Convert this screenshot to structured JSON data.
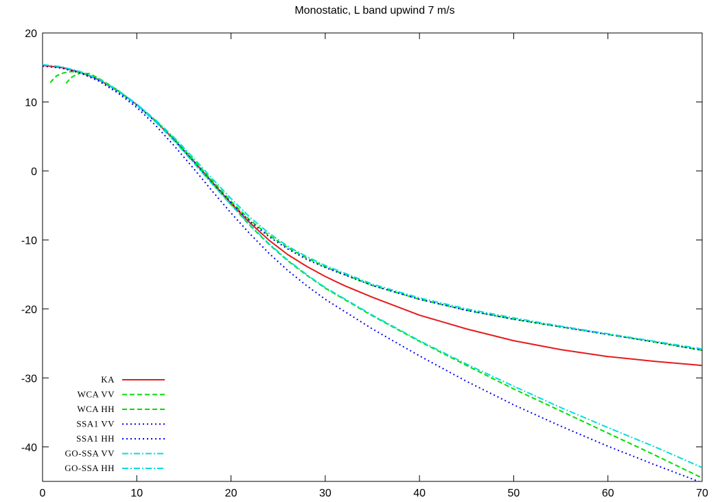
{
  "chart_data": {
    "type": "line",
    "title": "Monostatic, L band upwind 7 m/s",
    "xlabel": "",
    "ylabel": "",
    "xlim": [
      0,
      70
    ],
    "ylim": [
      -45,
      20
    ],
    "xticks": [
      0,
      10,
      20,
      30,
      40,
      50,
      60,
      70
    ],
    "yticks": [
      -40,
      -30,
      -20,
      -10,
      0,
      10,
      20
    ],
    "grid": false,
    "legend_position": "bottom-left",
    "series": [
      {
        "name": "KA",
        "color": "#e41a1c",
        "dash": "solid",
        "x": [
          0,
          2,
          4,
          6,
          8,
          10,
          12,
          14,
          16,
          18,
          20,
          22,
          24,
          26,
          28,
          30,
          32,
          35,
          40,
          45,
          50,
          55,
          60,
          65,
          70
        ],
        "y": [
          15.3,
          15.0,
          14.3,
          13.2,
          11.6,
          9.6,
          7.2,
          4.5,
          1.5,
          -1.6,
          -4.7,
          -7.5,
          -10.0,
          -12.1,
          -13.8,
          -15.3,
          -16.6,
          -18.3,
          -20.9,
          -22.9,
          -24.6,
          -25.9,
          -26.9,
          -27.6,
          -28.2
        ]
      },
      {
        "name": "WCA VV",
        "color": "#00dd00",
        "dash": "dashed",
        "x": [
          0.8,
          1.5,
          2.2,
          3,
          4,
          6,
          8,
          10,
          12,
          14,
          16,
          18,
          20,
          22,
          24,
          26,
          28,
          30,
          35,
          40,
          45,
          50,
          55,
          60,
          65,
          70
        ],
        "y": [
          12.8,
          13.8,
          14.2,
          14.4,
          14.3,
          13.3,
          11.6,
          9.6,
          7.3,
          4.6,
          1.6,
          -1.4,
          -4.4,
          -7.1,
          -9.3,
          -11.1,
          -12.6,
          -13.9,
          -16.6,
          -18.6,
          -20.2,
          -21.5,
          -22.6,
          -23.7,
          -24.8,
          -26.0
        ]
      },
      {
        "name": "WCA HH",
        "color": "#00dd00",
        "dash": "dashed",
        "x": [
          2.5,
          3,
          3.5,
          4,
          5,
          6,
          8,
          10,
          12,
          14,
          16,
          18,
          20,
          22,
          24,
          26,
          28,
          30,
          35,
          40,
          45,
          50,
          55,
          60,
          65,
          70
        ],
        "y": [
          12.7,
          13.5,
          13.9,
          14.2,
          14.1,
          13.4,
          11.7,
          9.6,
          7.2,
          4.5,
          1.4,
          -1.8,
          -4.9,
          -7.9,
          -10.6,
          -13.0,
          -15.1,
          -17.0,
          -21.0,
          -24.7,
          -28.2,
          -31.6,
          -34.8,
          -38.0,
          -41.2,
          -44.5
        ]
      },
      {
        "name": "SSA1 VV",
        "color": "#0000ee",
        "dash": "dotted",
        "x": [
          0,
          2,
          4,
          6,
          8,
          10,
          12,
          14,
          16,
          18,
          20,
          22,
          24,
          26,
          28,
          30,
          35,
          40,
          45,
          50,
          55,
          60,
          65,
          70
        ],
        "y": [
          15.3,
          15.0,
          14.3,
          13.2,
          11.5,
          9.5,
          7.1,
          4.4,
          1.4,
          -1.7,
          -4.6,
          -7.3,
          -9.5,
          -11.3,
          -12.8,
          -14.0,
          -16.6,
          -18.6,
          -20.2,
          -21.5,
          -22.6,
          -23.7,
          -24.8,
          -26.0
        ]
      },
      {
        "name": "SSA1 HH",
        "color": "#0000ee",
        "dash": "dotted",
        "x": [
          0,
          2,
          4,
          6,
          8,
          10,
          12,
          14,
          16,
          18,
          20,
          22,
          24,
          26,
          28,
          30,
          35,
          40,
          45,
          50,
          55,
          60,
          65,
          70
        ],
        "y": [
          15.2,
          14.9,
          14.2,
          13.0,
          11.3,
          9.2,
          6.6,
          3.6,
          0.4,
          -2.9,
          -6.1,
          -9.1,
          -11.9,
          -14.4,
          -16.6,
          -18.6,
          -22.9,
          -26.8,
          -30.5,
          -33.9,
          -37.0,
          -39.9,
          -42.6,
          -45.2
        ]
      },
      {
        "name": "GO-SSA VV",
        "color": "#00dddd",
        "dash": "dashdot",
        "x": [
          0,
          2,
          4,
          6,
          8,
          10,
          12,
          14,
          16,
          18,
          20,
          22,
          24,
          26,
          28,
          30,
          35,
          40,
          45,
          50,
          55,
          60,
          65,
          70
        ],
        "y": [
          15.4,
          15.1,
          14.4,
          13.3,
          11.7,
          9.7,
          7.4,
          4.8,
          1.9,
          -1.1,
          -4.0,
          -6.7,
          -9.0,
          -10.9,
          -12.4,
          -13.7,
          -16.4,
          -18.4,
          -20.0,
          -21.3,
          -22.5,
          -23.6,
          -24.7,
          -25.8
        ]
      },
      {
        "name": "GO-SSA HH",
        "color": "#00dddd",
        "dash": "dashdot",
        "x": [
          0,
          2,
          4,
          6,
          8,
          10,
          12,
          14,
          16,
          18,
          20,
          22,
          24,
          26,
          28,
          30,
          35,
          40,
          45,
          50,
          55,
          60,
          65,
          70
        ],
        "y": [
          15.4,
          15.1,
          14.4,
          13.3,
          11.6,
          9.6,
          7.1,
          4.3,
          1.2,
          -1.9,
          -4.9,
          -7.8,
          -10.5,
          -12.9,
          -15.0,
          -16.9,
          -20.9,
          -24.6,
          -28.0,
          -31.2,
          -34.3,
          -37.2,
          -40.0,
          -43.0
        ]
      }
    ]
  }
}
